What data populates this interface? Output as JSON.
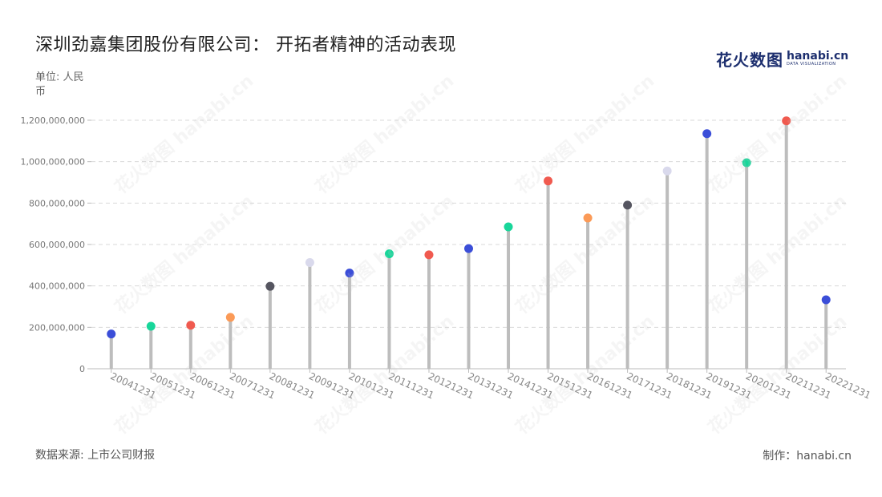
{
  "title": "深圳劲嘉集团股份有限公司： 开拓者精神的活动表现",
  "unit_label": "单位: 人民币",
  "source_label": "数据来源: 上市公司财报",
  "credit_label": "制作：hanabi.cn",
  "logo": {
    "cn_text": "花火数图",
    "en_text": "hanabi.cn",
    "tagline": "DATA VISUALIZATION",
    "watermark": "花火数图 hanabi.cn"
  },
  "chart_data": {
    "type": "lollipop",
    "x": [
      "20041231",
      "20051231",
      "20061231",
      "20071231",
      "20081231",
      "20091231",
      "20101231",
      "20111231",
      "20121231",
      "20131231",
      "20141231",
      "20151231",
      "20161231",
      "20171231",
      "20181231",
      "20191231",
      "20201231",
      "20211231",
      "20221231"
    ],
    "values": [
      168000000,
      205000000,
      210000000,
      248000000,
      398000000,
      513000000,
      462000000,
      555000000,
      550000000,
      580000000,
      685000000,
      907000000,
      728000000,
      790000000,
      955000000,
      1135000000,
      995000000,
      1197000000,
      333000000
    ],
    "ylim": [
      0,
      1200000000
    ],
    "yticks": [
      0,
      200000000,
      400000000,
      600000000,
      800000000,
      1000000000,
      1200000000
    ],
    "ytick_labels": [
      "0",
      "200,000,000",
      "400,000,000",
      "600,000,000",
      "800,000,000",
      "1,000,000,000",
      "1,200,000,000"
    ],
    "grid": true,
    "stem_color": "#bdbdbd",
    "dot_colors": [
      "#3b4ed8",
      "#18d69a",
      "#f05a4f",
      "#fb9a57",
      "#555560",
      "#d9d9ec",
      "#3b4ed8",
      "#18d69a",
      "#f05a4f",
      "#3b4ed8",
      "#18d69a",
      "#f05a4f",
      "#fb9a57",
      "#555560",
      "#d9d9ec",
      "#3b4ed8",
      "#18d69a",
      "#f05a4f",
      "#3b4ed8"
    ]
  }
}
